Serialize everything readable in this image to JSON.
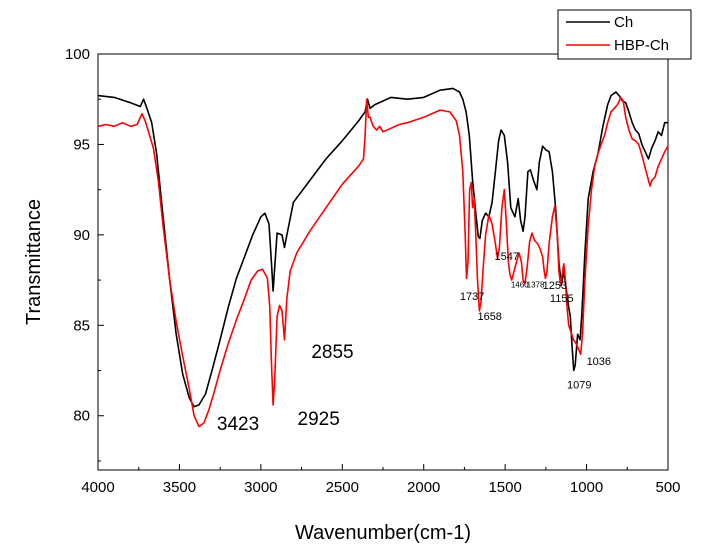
{
  "chart_data": {
    "type": "line",
    "xlabel": "Wavenumber(cm-1)",
    "ylabel": "Transmittance",
    "xlim": [
      4000,
      500
    ],
    "ylim": [
      77,
      100
    ],
    "x_reversed": true,
    "xticks": [
      4000,
      3500,
      3000,
      2500,
      2000,
      1500,
      1000,
      500
    ],
    "yticks": [
      80,
      85,
      90,
      95,
      100
    ],
    "legend_position": "top-right",
    "series": [
      {
        "name": "Ch",
        "color": "#000000",
        "points": [
          [
            4000,
            97.7
          ],
          [
            3900,
            97.6
          ],
          [
            3800,
            97.3
          ],
          [
            3740,
            97.1
          ],
          [
            3720,
            97.5
          ],
          [
            3700,
            97.0
          ],
          [
            3670,
            96.2
          ],
          [
            3640,
            94.5
          ],
          [
            3600,
            91.0
          ],
          [
            3560,
            87.5
          ],
          [
            3520,
            84.5
          ],
          [
            3480,
            82.3
          ],
          [
            3440,
            81.0
          ],
          [
            3410,
            80.5
          ],
          [
            3380,
            80.6
          ],
          [
            3340,
            81.2
          ],
          [
            3300,
            82.5
          ],
          [
            3250,
            84.2
          ],
          [
            3200,
            86.0
          ],
          [
            3150,
            87.6
          ],
          [
            3100,
            88.8
          ],
          [
            3050,
            90.0
          ],
          [
            3000,
            91.0
          ],
          [
            2975,
            91.2
          ],
          [
            2950,
            90.6
          ],
          [
            2935,
            88.5
          ],
          [
            2925,
            86.9
          ],
          [
            2915,
            88.2
          ],
          [
            2900,
            90.1
          ],
          [
            2870,
            90.0
          ],
          [
            2855,
            89.3
          ],
          [
            2840,
            90.0
          ],
          [
            2800,
            91.8
          ],
          [
            2700,
            93.0
          ],
          [
            2600,
            94.2
          ],
          [
            2500,
            95.2
          ],
          [
            2400,
            96.3
          ],
          [
            2360,
            96.8
          ],
          [
            2345,
            97.5
          ],
          [
            2330,
            97.0
          ],
          [
            2300,
            97.2
          ],
          [
            2200,
            97.6
          ],
          [
            2100,
            97.5
          ],
          [
            2000,
            97.6
          ],
          [
            1900,
            98.0
          ],
          [
            1820,
            98.1
          ],
          [
            1780,
            97.9
          ],
          [
            1760,
            97.5
          ],
          [
            1740,
            96.8
          ],
          [
            1720,
            95.5
          ],
          [
            1700,
            93.0
          ],
          [
            1680,
            91.2
          ],
          [
            1665,
            89.9
          ],
          [
            1655,
            89.8
          ],
          [
            1640,
            90.8
          ],
          [
            1620,
            91.2
          ],
          [
            1600,
            91.0
          ],
          [
            1580,
            91.8
          ],
          [
            1560,
            93.5
          ],
          [
            1540,
            95.2
          ],
          [
            1525,
            95.8
          ],
          [
            1505,
            95.5
          ],
          [
            1485,
            94.0
          ],
          [
            1465,
            91.5
          ],
          [
            1440,
            91.0
          ],
          [
            1420,
            92.0
          ],
          [
            1405,
            90.8
          ],
          [
            1390,
            90.2
          ],
          [
            1378,
            91.0
          ],
          [
            1360,
            93.5
          ],
          [
            1345,
            93.6
          ],
          [
            1325,
            93.0
          ],
          [
            1305,
            92.5
          ],
          [
            1290,
            94.0
          ],
          [
            1270,
            94.9
          ],
          [
            1250,
            94.7
          ],
          [
            1230,
            94.6
          ],
          [
            1210,
            93.5
          ],
          [
            1190,
            91.5
          ],
          [
            1170,
            88.5
          ],
          [
            1155,
            87.2
          ],
          [
            1140,
            88.0
          ],
          [
            1125,
            87.0
          ],
          [
            1110,
            86.0
          ],
          [
            1100,
            85.5
          ],
          [
            1090,
            84.0
          ],
          [
            1079,
            82.5
          ],
          [
            1070,
            82.8
          ],
          [
            1055,
            84.5
          ],
          [
            1040,
            84.2
          ],
          [
            1030,
            85.5
          ],
          [
            1010,
            89.0
          ],
          [
            990,
            92.0
          ],
          [
            960,
            93.5
          ],
          [
            930,
            94.5
          ],
          [
            900,
            96.0
          ],
          [
            870,
            97.2
          ],
          [
            850,
            97.7
          ],
          [
            820,
            97.9
          ],
          [
            800,
            97.7
          ],
          [
            780,
            97.4
          ],
          [
            760,
            97.3
          ],
          [
            740,
            96.8
          ],
          [
            720,
            96.2
          ],
          [
            700,
            95.8
          ],
          [
            680,
            95.6
          ],
          [
            660,
            95.0
          ],
          [
            640,
            94.6
          ],
          [
            620,
            94.2
          ],
          [
            600,
            94.8
          ],
          [
            580,
            95.2
          ],
          [
            560,
            95.7
          ],
          [
            540,
            95.5
          ],
          [
            520,
            96.2
          ],
          [
            500,
            96.2
          ]
        ]
      },
      {
        "name": "HBP-Ch",
        "color": "#ff0000",
        "points": [
          [
            4000,
            96.0
          ],
          [
            3950,
            96.1
          ],
          [
            3900,
            96.0
          ],
          [
            3850,
            96.2
          ],
          [
            3800,
            96.0
          ],
          [
            3760,
            96.1
          ],
          [
            3730,
            96.7
          ],
          [
            3710,
            96.3
          ],
          [
            3690,
            95.7
          ],
          [
            3660,
            94.8
          ],
          [
            3630,
            93.0
          ],
          [
            3600,
            90.5
          ],
          [
            3560,
            87.5
          ],
          [
            3520,
            85.2
          ],
          [
            3480,
            83.3
          ],
          [
            3440,
            81.5
          ],
          [
            3410,
            80.0
          ],
          [
            3380,
            79.4
          ],
          [
            3350,
            79.6
          ],
          [
            3320,
            80.3
          ],
          [
            3290,
            81.2
          ],
          [
            3250,
            82.5
          ],
          [
            3200,
            84.0
          ],
          [
            3150,
            85.3
          ],
          [
            3100,
            86.5
          ],
          [
            3060,
            87.5
          ],
          [
            3020,
            88.0
          ],
          [
            2990,
            88.1
          ],
          [
            2960,
            87.6
          ],
          [
            2945,
            86.0
          ],
          [
            2935,
            83.0
          ],
          [
            2925,
            80.6
          ],
          [
            2915,
            82.0
          ],
          [
            2900,
            85.5
          ],
          [
            2885,
            86.1
          ],
          [
            2870,
            85.8
          ],
          [
            2855,
            84.2
          ],
          [
            2840,
            86.5
          ],
          [
            2820,
            88.0
          ],
          [
            2780,
            89.0
          ],
          [
            2700,
            90.2
          ],
          [
            2600,
            91.5
          ],
          [
            2500,
            92.8
          ],
          [
            2450,
            93.3
          ],
          [
            2400,
            93.8
          ],
          [
            2370,
            94.2
          ],
          [
            2360,
            95.5
          ],
          [
            2350,
            97.5
          ],
          [
            2340,
            96.5
          ],
          [
            2330,
            96.5
          ],
          [
            2310,
            96.0
          ],
          [
            2290,
            95.8
          ],
          [
            2270,
            96.0
          ],
          [
            2250,
            95.7
          ],
          [
            2200,
            95.9
          ],
          [
            2150,
            96.1
          ],
          [
            2100,
            96.2
          ],
          [
            2000,
            96.5
          ],
          [
            1900,
            96.9
          ],
          [
            1840,
            96.8
          ],
          [
            1800,
            96.3
          ],
          [
            1780,
            95.5
          ],
          [
            1760,
            93.5
          ],
          [
            1745,
            90.0
          ],
          [
            1737,
            87.6
          ],
          [
            1728,
            88.5
          ],
          [
            1718,
            92.5
          ],
          [
            1708,
            92.9
          ],
          [
            1700,
            91.5
          ],
          [
            1690,
            92.0
          ],
          [
            1680,
            90.0
          ],
          [
            1670,
            87.5
          ],
          [
            1658,
            85.8
          ],
          [
            1648,
            86.3
          ],
          [
            1635,
            88.2
          ],
          [
            1620,
            90.0
          ],
          [
            1600,
            91.1
          ],
          [
            1580,
            90.6
          ],
          [
            1560,
            89.5
          ],
          [
            1547,
            88.7
          ],
          [
            1535,
            89.3
          ],
          [
            1520,
            91.5
          ],
          [
            1505,
            92.5
          ],
          [
            1495,
            91.0
          ],
          [
            1480,
            88.5
          ],
          [
            1470,
            87.8
          ],
          [
            1460,
            87.5
          ],
          [
            1445,
            88.0
          ],
          [
            1430,
            88.5
          ],
          [
            1415,
            89.0
          ],
          [
            1400,
            88.5
          ],
          [
            1390,
            87.5
          ],
          [
            1378,
            87.3
          ],
          [
            1365,
            88.2
          ],
          [
            1350,
            89.6
          ],
          [
            1335,
            90.1
          ],
          [
            1320,
            89.7
          ],
          [
            1300,
            89.5
          ],
          [
            1285,
            89.2
          ],
          [
            1270,
            88.8
          ],
          [
            1260,
            88.0
          ],
          [
            1253,
            87.6
          ],
          [
            1243,
            88.0
          ],
          [
            1230,
            89.5
          ],
          [
            1210,
            91.0
          ],
          [
            1195,
            91.6
          ],
          [
            1180,
            90.0
          ],
          [
            1170,
            88.0
          ],
          [
            1160,
            87.3
          ],
          [
            1150,
            87.8
          ],
          [
            1140,
            88.4
          ],
          [
            1130,
            87.5
          ],
          [
            1120,
            86.0
          ],
          [
            1110,
            85.0
          ],
          [
            1095,
            84.6
          ],
          [
            1080,
            84.2
          ],
          [
            1065,
            84.0
          ],
          [
            1050,
            83.7
          ],
          [
            1036,
            83.4
          ],
          [
            1025,
            84.5
          ],
          [
            1010,
            87.5
          ],
          [
            990,
            90.5
          ],
          [
            970,
            92.5
          ],
          [
            950,
            93.8
          ],
          [
            930,
            94.5
          ],
          [
            910,
            95.0
          ],
          [
            890,
            95.5
          ],
          [
            870,
            96.2
          ],
          [
            850,
            96.8
          ],
          [
            830,
            97.0
          ],
          [
            810,
            97.2
          ],
          [
            790,
            97.6
          ],
          [
            775,
            97.4
          ],
          [
            760,
            96.5
          ],
          [
            740,
            95.8
          ],
          [
            720,
            95.3
          ],
          [
            700,
            95.2
          ],
          [
            680,
            95.0
          ],
          [
            660,
            94.4
          ],
          [
            640,
            93.7
          ],
          [
            620,
            93.0
          ],
          [
            610,
            92.7
          ],
          [
            600,
            93.0
          ],
          [
            580,
            93.2
          ],
          [
            560,
            93.8
          ],
          [
            540,
            94.2
          ],
          [
            520,
            94.6
          ],
          [
            500,
            94.9
          ]
        ]
      }
    ],
    "annotations": [
      {
        "text": "3423",
        "x": 3270,
        "y": 79.2,
        "size": "big"
      },
      {
        "text": "2925",
        "x": 2775,
        "y": 79.5,
        "size": "big"
      },
      {
        "text": "2855",
        "x": 2690,
        "y": 83.2,
        "size": "big"
      },
      {
        "text": "1737",
        "x": 1778,
        "y": 86.4,
        "size": "mid"
      },
      {
        "text": "1658",
        "x": 1670,
        "y": 85.3,
        "size": "mid"
      },
      {
        "text": "1547",
        "x": 1565,
        "y": 88.6,
        "size": "mid"
      },
      {
        "text": "1460",
        "x": 1465,
        "y": 87.1,
        "size": "small"
      },
      {
        "text": "1378",
        "x": 1368,
        "y": 87.1,
        "size": "small"
      },
      {
        "text": "1253",
        "x": 1270,
        "y": 87.0,
        "size": "mid"
      },
      {
        "text": "1155",
        "x": 1225,
        "y": 86.3,
        "size": "mid"
      },
      {
        "text": "1079",
        "x": 1120,
        "y": 81.5,
        "size": "mid"
      },
      {
        "text": "1036",
        "x": 1000,
        "y": 82.8,
        "size": "mid"
      }
    ]
  }
}
